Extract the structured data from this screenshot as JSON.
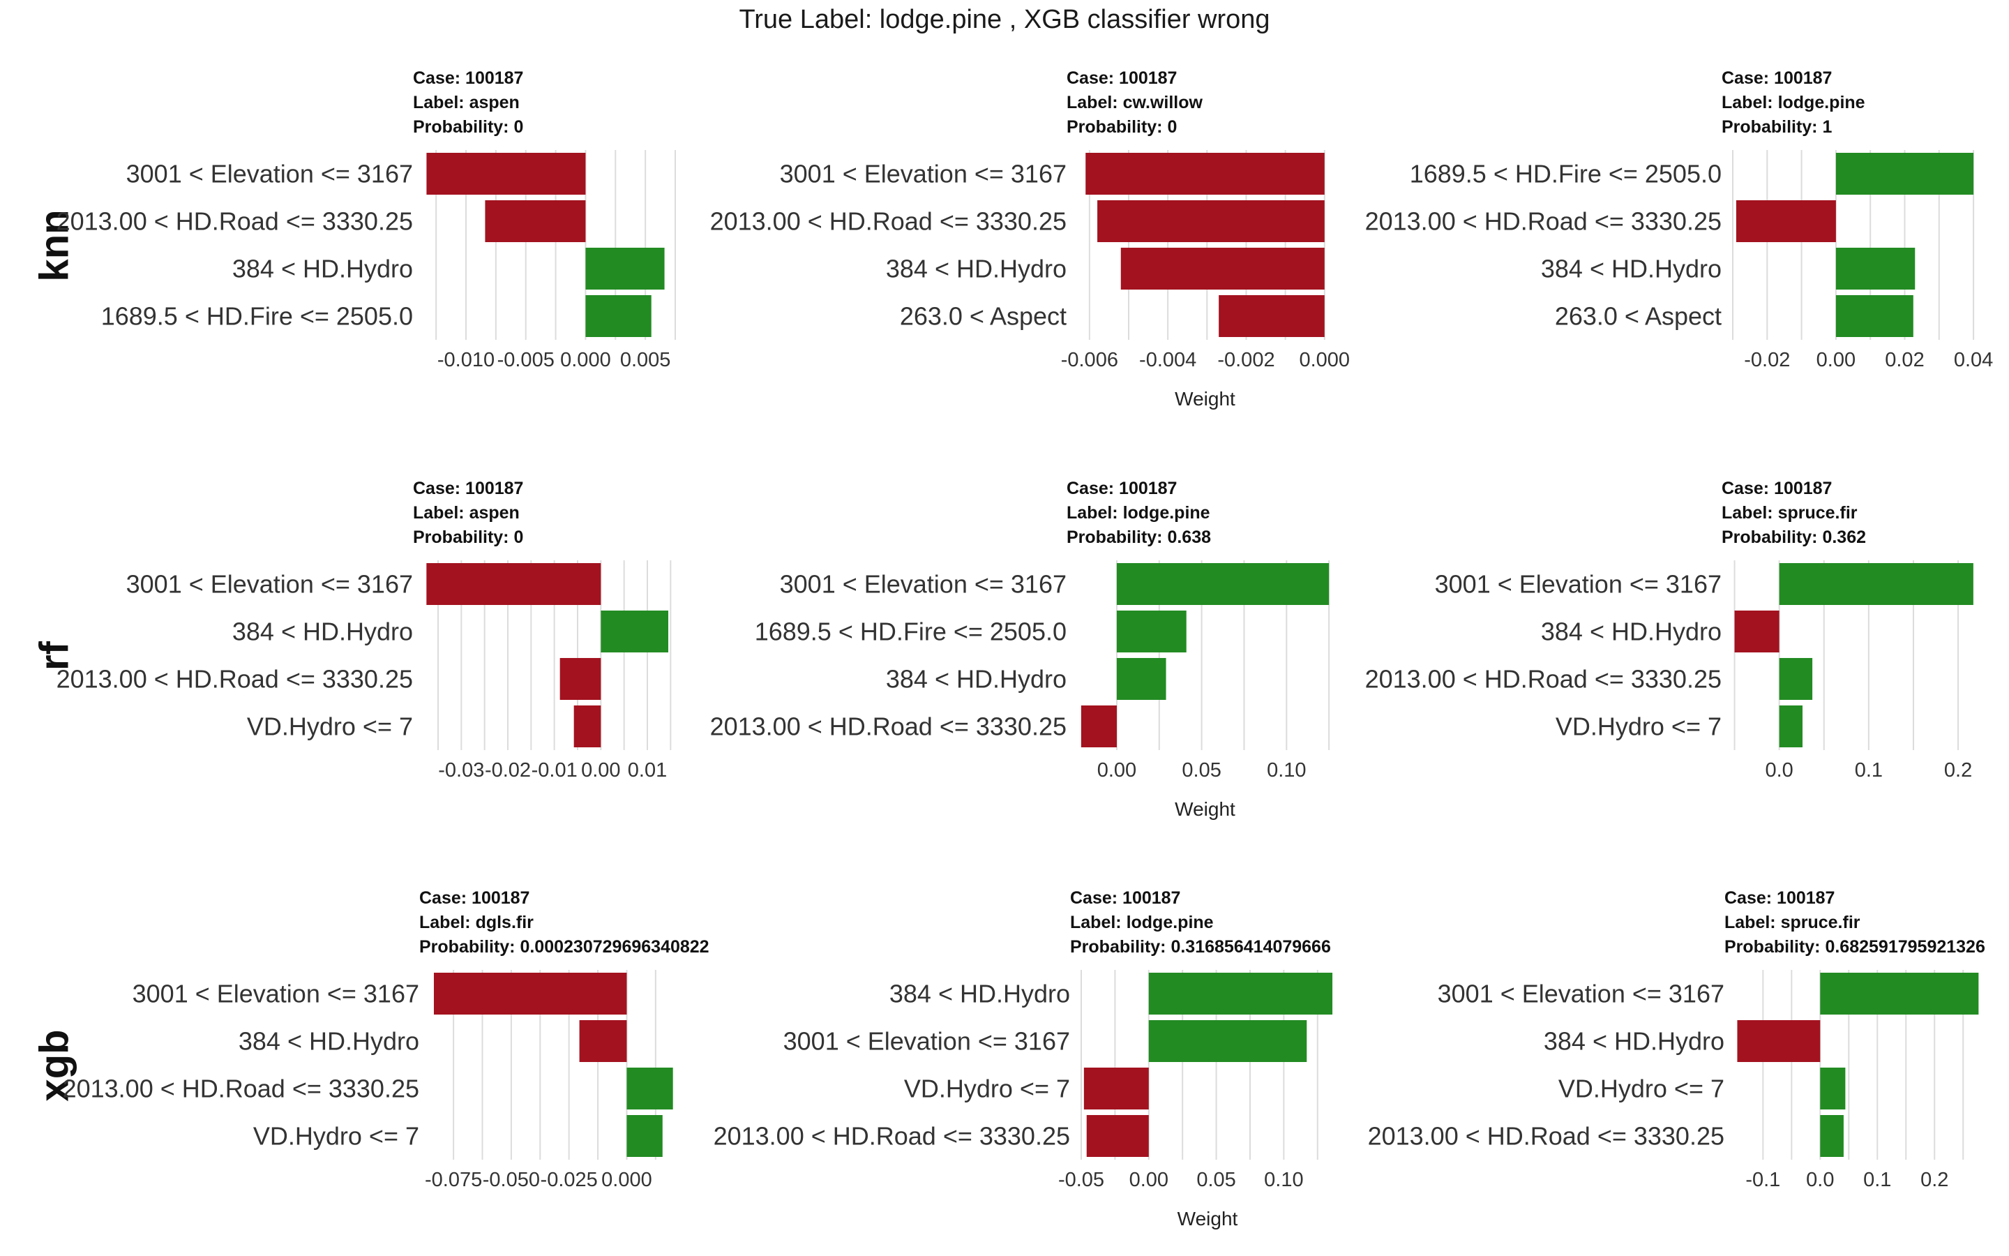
{
  "title": "True Label: lodge.pine , XGB classifier wrong",
  "row_labels": [
    "knn",
    "rf",
    "xgb"
  ],
  "colors": {
    "positive": "#228b22",
    "negative": "#a3121f"
  },
  "chart_data": [
    {
      "type": "bar",
      "model": "knn",
      "case_line": "Case: 100187",
      "label_line": "Label: aspen",
      "prob_line": "Probability: 0",
      "features": [
        "3001 < Elevation <= 3167",
        "2013.00 < HD.Road <= 3330.25",
        "384 < HD.Hydro",
        "1689.5 < HD.Fire <= 2505.0"
      ],
      "weights": [
        -0.0133,
        -0.0084,
        0.0066,
        0.0055
      ],
      "xlim": [
        -0.0135,
        0.0075
      ],
      "ticks": [
        -0.01,
        -0.005,
        0.0,
        0.005
      ],
      "tick_labels": [
        "-0.010",
        "-0.005",
        "0.000",
        "0.005"
      ],
      "xlabel": ""
    },
    {
      "type": "bar",
      "model": "knn",
      "case_line": "Case: 100187",
      "label_line": "Label: cw.willow",
      "prob_line": "Probability: 0",
      "features": [
        "3001 < Elevation <= 3167",
        "2013.00 < HD.Road <= 3330.25",
        "384 < HD.Hydro",
        "263.0 < Aspect"
      ],
      "weights": [
        -0.0061,
        -0.0058,
        -0.0052,
        -0.0027
      ],
      "xlim": [
        -0.0063,
        0.0002
      ],
      "ticks": [
        -0.006,
        -0.004,
        -0.002,
        0.0
      ],
      "tick_labels": [
        "-0.006",
        "-0.004",
        "-0.002",
        "0.000"
      ],
      "xlabel": "Weight"
    },
    {
      "type": "bar",
      "model": "knn",
      "case_line": "Case: 100187",
      "label_line": "Label: lodge.pine",
      "prob_line": "Probability: 1",
      "features": [
        "1689.5 < HD.Fire <= 2505.0",
        "2013.00 < HD.Road <= 3330.25",
        "384 < HD.Hydro",
        "263.0 < Aspect"
      ],
      "weights": [
        0.04,
        -0.029,
        0.023,
        0.0225
      ],
      "xlim": [
        -0.03,
        0.041
      ],
      "ticks": [
        -0.02,
        0.0,
        0.02,
        0.04
      ],
      "tick_labels": [
        "-0.02",
        "0.00",
        "0.02",
        "0.04"
      ],
      "xlabel": ""
    },
    {
      "type": "bar",
      "model": "rf",
      "case_line": "Case: 100187",
      "label_line": "Label: aspen",
      "prob_line": "Probability: 0",
      "features": [
        "3001 < Elevation <= 3167",
        "384 < HD.Hydro",
        "2013.00 < HD.Road <= 3330.25",
        "VD.Hydro <= 7"
      ],
      "weights": [
        -0.0375,
        0.0145,
        -0.0088,
        -0.0058
      ],
      "xlim": [
        -0.038,
        0.016
      ],
      "ticks": [
        -0.03,
        -0.02,
        -0.01,
        0.0,
        0.01
      ],
      "tick_labels": [
        "-0.03",
        "-0.02",
        "-0.01",
        "0.00",
        "0.01"
      ],
      "xlabel": ""
    },
    {
      "type": "bar",
      "model": "rf",
      "case_line": "Case: 100187",
      "label_line": "Label: lodge.pine",
      "prob_line": "Probability: 0.638",
      "features": [
        "3001 < Elevation <= 3167",
        "1689.5 < HD.Fire <= 2505.0",
        "384 < HD.Hydro",
        "2013.00 < HD.Road <= 3330.25"
      ],
      "weights": [
        0.125,
        0.041,
        0.029,
        -0.021
      ],
      "xlim": [
        -0.023,
        0.127
      ],
      "ticks": [
        0.0,
        0.05,
        0.1
      ],
      "tick_labels": [
        "0.00",
        "0.05",
        "0.10"
      ],
      "xlabel": "Weight"
    },
    {
      "type": "bar",
      "model": "rf",
      "case_line": "Case: 100187",
      "label_line": "Label: spruce.fir",
      "prob_line": "Probability: 0.362",
      "features": [
        "3001 < Elevation <= 3167",
        "384 < HD.Hydro",
        "2013.00 < HD.Road <= 3330.25",
        "VD.Hydro <= 7"
      ],
      "weights": [
        0.217,
        -0.05,
        0.037,
        0.026
      ],
      "xlim": [
        -0.052,
        0.221
      ],
      "ticks": [
        0.0,
        0.1,
        0.2
      ],
      "tick_labels": [
        "0.0",
        "0.1",
        "0.2"
      ],
      "xlabel": ""
    },
    {
      "type": "bar",
      "model": "xgb",
      "case_line": "Case: 100187",
      "label_line": "Label: dgls.fir",
      "prob_line": "Probability: 0.000230729696340822",
      "features": [
        "3001 < Elevation <= 3167",
        "384 < HD.Hydro",
        "2013.00 < HD.Road <= 3330.25",
        "VD.Hydro <= 7"
      ],
      "weights": [
        -0.0835,
        -0.0205,
        0.02,
        0.0155
      ],
      "xlim": [
        -0.085,
        0.021
      ],
      "ticks": [
        -0.075,
        -0.05,
        -0.025,
        0.0
      ],
      "tick_labels": [
        "-0.075",
        "-0.050",
        "-0.025",
        "0.000"
      ],
      "xlabel": ""
    },
    {
      "type": "bar",
      "model": "xgb",
      "case_line": "Case: 100187",
      "label_line": "Label: lodge.pine",
      "prob_line": "Probability: 0.316856414079666",
      "features": [
        "384 < HD.Hydro",
        "3001 < Elevation <= 3167",
        "VD.Hydro <= 7",
        "2013.00 < HD.Road <= 3330.25"
      ],
      "weights": [
        0.136,
        0.117,
        -0.048,
        -0.046
      ],
      "xlim": [
        -0.05,
        0.137
      ],
      "ticks": [
        -0.05,
        0.0,
        0.05,
        0.1
      ],
      "tick_labels": [
        "-0.05",
        "0.00",
        "0.05",
        "0.10"
      ],
      "xlabel": "Weight"
    },
    {
      "type": "bar",
      "model": "xgb",
      "case_line": "Case: 100187",
      "label_line": "Label: spruce.fir",
      "prob_line": "Probability: 0.682591795921326",
      "features": [
        "3001 < Elevation <= 3167",
        "384 < HD.Hydro",
        "VD.Hydro <= 7",
        "2013.00 < HD.Road <= 3330.25"
      ],
      "weights": [
        0.277,
        -0.145,
        0.044,
        0.041
      ],
      "xlim": [
        -0.148,
        0.279
      ],
      "ticks": [
        -0.1,
        0.0,
        0.1,
        0.2
      ],
      "tick_labels": [
        "-0.1",
        "0.0",
        "0.1",
        "0.2"
      ],
      "xlabel": ""
    }
  ]
}
